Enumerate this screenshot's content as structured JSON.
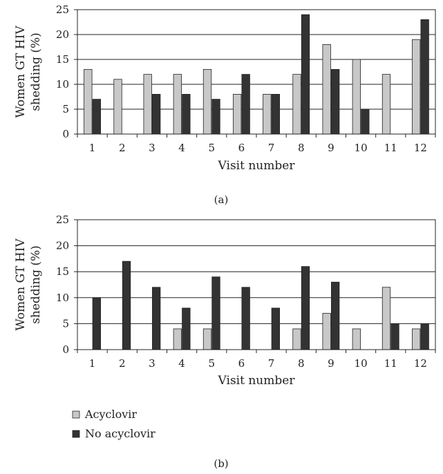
{
  "colors": {
    "acyclovir": "#c8c8c8",
    "no_acyclovir": "#333333",
    "outline": "#222222",
    "grid": "#222222"
  },
  "legend": {
    "placement": "bottom-left",
    "items": [
      {
        "label": "Acyclovir",
        "color_key": "acyclovir"
      },
      {
        "label": "No acyclovir",
        "color_key": "no_acyclovir"
      }
    ]
  },
  "chart_data": [
    {
      "type": "bar",
      "panel_label": "(a)",
      "xlabel": "Visit number",
      "ylabel": [
        "Women GT HIV",
        "shedding (%)"
      ],
      "ylim": [
        0,
        25
      ],
      "yticks": [
        0,
        5,
        10,
        15,
        20,
        25
      ],
      "grid": true,
      "categories": [
        "1",
        "2",
        "3",
        "4",
        "5",
        "6",
        "7",
        "8",
        "9",
        "10",
        "11",
        "12"
      ],
      "series": [
        {
          "name": "Acyclovir",
          "color_key": "acyclovir",
          "values": [
            13,
            11,
            12,
            12,
            13,
            8,
            8,
            12,
            18,
            15,
            12,
            19
          ]
        },
        {
          "name": "No acyclovir",
          "color_key": "no_acyclovir",
          "values": [
            7,
            0,
            8,
            8,
            7,
            12,
            8,
            24,
            13,
            5,
            0,
            23
          ]
        }
      ]
    },
    {
      "type": "bar",
      "panel_label": "(b)",
      "xlabel": "Visit number",
      "ylabel": [
        "Women GT HIV",
        "shedding (%)"
      ],
      "ylim": [
        0,
        25
      ],
      "yticks": [
        0,
        5,
        10,
        15,
        20,
        25
      ],
      "grid": true,
      "categories": [
        "1",
        "2",
        "3",
        "4",
        "5",
        "6",
        "7",
        "8",
        "9",
        "10",
        "11",
        "12"
      ],
      "series": [
        {
          "name": "Acyclovir",
          "color_key": "acyclovir",
          "values": [
            0,
            0,
            0,
            4,
            4,
            0,
            0,
            4,
            7,
            4,
            12,
            4
          ]
        },
        {
          "name": "No acyclovir",
          "color_key": "no_acyclovir",
          "values": [
            10,
            17,
            12,
            8,
            14,
            12,
            8,
            16,
            13,
            0,
            5,
            5
          ]
        }
      ]
    }
  ]
}
